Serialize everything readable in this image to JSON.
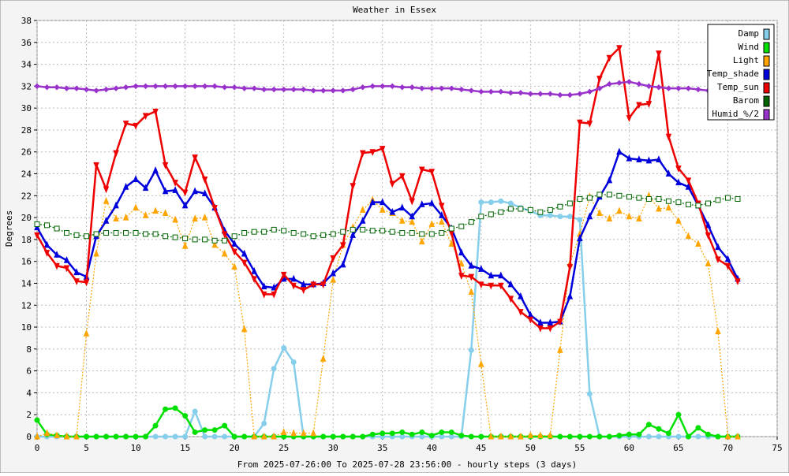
{
  "chart_data": {
    "type": "line",
    "title": "Weather in Essex",
    "x_label": "From 2025-07-26:00 To 2025-07-28 23:56:00 - hourly steps (3 days)",
    "y_label": "Degrees",
    "x": [
      0,
      1,
      2,
      3,
      4,
      5,
      6,
      7,
      8,
      9,
      10,
      11,
      12,
      13,
      14,
      15,
      16,
      17,
      18,
      19,
      20,
      21,
      22,
      23,
      24,
      25,
      26,
      27,
      28,
      29,
      30,
      31,
      32,
      33,
      34,
      35,
      36,
      37,
      38,
      39,
      40,
      41,
      42,
      43,
      44,
      45,
      46,
      47,
      48,
      49,
      50,
      51,
      52,
      53,
      54,
      55,
      56,
      57,
      58,
      59,
      60,
      61,
      62,
      63,
      64,
      65,
      66,
      67,
      68,
      69,
      70,
      71
    ],
    "xlim": [
      0,
      75
    ],
    "xticks": [
      0,
      5,
      10,
      15,
      20,
      25,
      30,
      35,
      40,
      45,
      50,
      55,
      60,
      65,
      70,
      75
    ],
    "ylim": [
      0,
      38
    ],
    "yticks": [
      0,
      2,
      4,
      6,
      8,
      10,
      12,
      14,
      16,
      18,
      20,
      22,
      24,
      26,
      28,
      30,
      32,
      34,
      36,
      38
    ],
    "grid": true,
    "legend": "top-right",
    "series": [
      {
        "name": "Damp",
        "color": "#87ceeb",
        "marker": "circle",
        "dashed": false,
        "values": [
          0,
          0,
          0,
          0,
          0,
          0,
          0,
          0,
          0,
          0,
          0,
          0,
          0,
          0,
          0,
          0,
          2.3,
          0,
          0,
          0,
          0,
          0,
          0,
          1.2,
          6.2,
          8.1,
          6.8,
          0,
          0,
          0,
          0,
          0,
          0,
          0,
          0,
          0,
          0,
          0,
          0,
          0,
          0,
          0,
          0,
          0,
          7.9,
          21.4,
          21.4,
          21.5,
          21.3,
          20.9,
          20.6,
          20.2,
          20.2,
          20.1,
          20.1,
          19.8,
          3.9,
          0,
          0,
          0,
          0,
          0,
          0,
          0,
          0,
          0,
          0,
          0,
          0,
          0,
          0,
          0
        ]
      },
      {
        "name": "Wind",
        "color": "#00e000",
        "marker": "circle",
        "dashed": false,
        "values": [
          1.5,
          0.2,
          0.1,
          0,
          0,
          0,
          0,
          0,
          0,
          0,
          0,
          0,
          1.0,
          2.5,
          2.6,
          1.9,
          0.4,
          0.6,
          0.6,
          1.0,
          0,
          0,
          0,
          0,
          0,
          0,
          0,
          0,
          0,
          0,
          0,
          0,
          0,
          0,
          0.2,
          0.3,
          0.3,
          0.4,
          0.2,
          0.4,
          0.1,
          0.4,
          0.4,
          0.1,
          0,
          0,
          0,
          0,
          0,
          0,
          0,
          0,
          0,
          0,
          0,
          0,
          0,
          0,
          0,
          0.1,
          0.2,
          0.2,
          1.1,
          0.7,
          0.3,
          2.0,
          0,
          0.8,
          0.2,
          0,
          0,
          0
        ]
      },
      {
        "name": "Light",
        "color": "#ffa500",
        "marker": "triangle-up",
        "dashed": true,
        "values": [
          0,
          0.3,
          0.1,
          0,
          0,
          9.4,
          16.7,
          21.5,
          19.9,
          20.0,
          20.9,
          20.2,
          20.6,
          20.4,
          19.8,
          17.4,
          19.9,
          20.0,
          17.5,
          16.7,
          15.5,
          9.8,
          0,
          0,
          0,
          0.4,
          0.3,
          0.3,
          0.3,
          7.1,
          14.3,
          17.5,
          19.1,
          20.7,
          21.6,
          20.7,
          20.4,
          19.7,
          19.6,
          17.8,
          19.4,
          19.6,
          17.6,
          15.8,
          13.2,
          6.6,
          0,
          0,
          0,
          0,
          0.1,
          0.1,
          0.1,
          7.9,
          15.8,
          18.5,
          21.9,
          20.4,
          19.9,
          20.6,
          20.1,
          19.9,
          22.0,
          20.8,
          20.9,
          19.7,
          18.3,
          17.6,
          15.8,
          9.6,
          0,
          0
        ]
      },
      {
        "name": "Temp_shade",
        "color": "#0000dd",
        "marker": "triangle-up",
        "dashed": false,
        "values": [
          19.1,
          17.5,
          16.6,
          16.1,
          15.0,
          14.6,
          18.3,
          19.7,
          21.1,
          22.8,
          23.5,
          22.7,
          24.3,
          22.4,
          22.5,
          21.1,
          22.4,
          22.2,
          20.9,
          18.8,
          17.6,
          16.7,
          15.1,
          13.7,
          13.6,
          14.4,
          14.4,
          13.9,
          13.9,
          14.0,
          14.9,
          15.7,
          18.4,
          19.7,
          21.4,
          21.4,
          20.5,
          20.9,
          20.1,
          21.2,
          21.3,
          20.2,
          19.0,
          16.8,
          15.6,
          15.3,
          14.7,
          14.7,
          13.9,
          12.8,
          11.1,
          10.4,
          10.4,
          10.5,
          12.8,
          18.1,
          20.1,
          21.9,
          23.4,
          26.0,
          25.4,
          25.3,
          25.2,
          25.3,
          24.0,
          23.2,
          22.8,
          21.1,
          19.3,
          17.3,
          16.2,
          14.4
        ]
      },
      {
        "name": "Temp_sun",
        "color": "#ee0000",
        "marker": "triangle-down",
        "dashed": false,
        "values": [
          18.4,
          16.8,
          15.6,
          15.4,
          14.2,
          14.1,
          24.8,
          22.6,
          25.9,
          28.6,
          28.4,
          29.3,
          29.7,
          24.8,
          23.2,
          22.3,
          25.5,
          23.5,
          20.9,
          18.5,
          16.9,
          15.9,
          14.4,
          13.0,
          13.0,
          14.8,
          13.8,
          13.4,
          13.9,
          13.9,
          16.3,
          17.5,
          22.9,
          25.9,
          26.0,
          26.3,
          23.1,
          23.8,
          21.5,
          24.4,
          24.2,
          21.1,
          18.6,
          14.7,
          14.6,
          13.9,
          13.8,
          13.8,
          12.6,
          11.4,
          10.7,
          9.9,
          9.9,
          10.5,
          15.5,
          28.7,
          28.6,
          32.7,
          34.6,
          35.5,
          29.1,
          30.3,
          30.4,
          35.0,
          27.4,
          24.5,
          23.4,
          21.3,
          18.4,
          16.2,
          15.6,
          14.2
        ]
      },
      {
        "name": "Barom",
        "color": "#006400",
        "marker": "square",
        "dashed": true,
        "values": [
          19.4,
          19.3,
          19.0,
          18.6,
          18.4,
          18.3,
          18.5,
          18.6,
          18.6,
          18.6,
          18.6,
          18.5,
          18.5,
          18.3,
          18.2,
          18.1,
          18.0,
          18.0,
          17.9,
          17.9,
          18.3,
          18.6,
          18.7,
          18.7,
          18.9,
          18.8,
          18.6,
          18.5,
          18.3,
          18.4,
          18.5,
          18.7,
          18.9,
          18.9,
          18.8,
          18.8,
          18.7,
          18.6,
          18.6,
          18.5,
          18.5,
          18.6,
          19.0,
          19.2,
          19.6,
          20.1,
          20.3,
          20.5,
          20.8,
          20.8,
          20.7,
          20.5,
          20.7,
          21.0,
          21.3,
          21.7,
          21.8,
          22.1,
          22.1,
          22.0,
          21.9,
          21.8,
          21.7,
          21.7,
          21.5,
          21.4,
          21.2,
          21.1,
          21.3,
          21.6,
          21.8,
          21.7
        ]
      },
      {
        "name": "Humid_%/2",
        "color": "#9933cc",
        "marker": "diamond",
        "dashed": false,
        "values": [
          32.0,
          31.9,
          31.9,
          31.8,
          31.8,
          31.7,
          31.6,
          31.7,
          31.8,
          31.9,
          32.0,
          32.0,
          32.0,
          32.0,
          32.0,
          32.0,
          32.0,
          32.0,
          32.0,
          31.9,
          31.9,
          31.8,
          31.8,
          31.7,
          31.7,
          31.7,
          31.7,
          31.7,
          31.6,
          31.6,
          31.6,
          31.6,
          31.7,
          31.9,
          32.0,
          32.0,
          32.0,
          31.9,
          31.9,
          31.8,
          31.8,
          31.8,
          31.8,
          31.7,
          31.6,
          31.5,
          31.5,
          31.5,
          31.4,
          31.4,
          31.3,
          31.3,
          31.3,
          31.2,
          31.2,
          31.3,
          31.5,
          31.8,
          32.2,
          32.3,
          32.4,
          32.2,
          32.0,
          31.9,
          31.8,
          31.8,
          31.8,
          31.7,
          31.6,
          31.6,
          null,
          null
        ]
      }
    ]
  }
}
